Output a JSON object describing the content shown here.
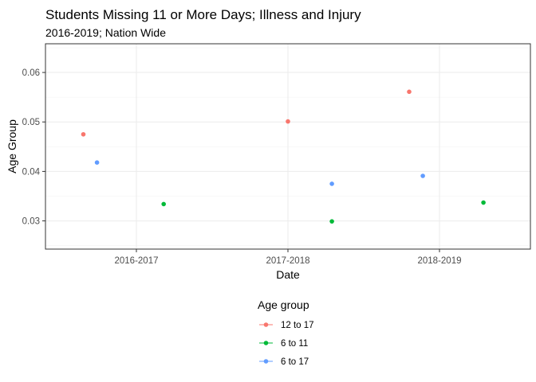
{
  "chart_data": {
    "type": "scatter",
    "title": "Students Missing 11 or More Days; Illness and Injury",
    "subtitle": "2016-2019; Nation Wide",
    "xlabel": "Date",
    "ylabel": "Age Group",
    "x_categories": [
      "2016-2017",
      "2017-2018",
      "2018-2019"
    ],
    "y_ticks": [
      "0.03",
      "0.04",
      "0.05",
      "0.06"
    ],
    "ylim": [
      0.0243,
      0.0658
    ],
    "grid": true,
    "legend": {
      "title": "Age group",
      "placement": "bottom",
      "entries": [
        "12 to 17",
        "6 to 11",
        "6 to 17"
      ]
    },
    "series": [
      {
        "name": "12 to 17",
        "color": "#F8766D",
        "points": [
          {
            "x": "2016-2017",
            "offset": -0.35,
            "y": 0.0475
          },
          {
            "x": "2017-2018",
            "offset": 0.0,
            "y": 0.0501
          },
          {
            "x": "2018-2019",
            "offset": -0.2,
            "y": 0.0561
          }
        ]
      },
      {
        "name": "6 to 11",
        "color": "#00BA38",
        "points": [
          {
            "x": "2016-2017",
            "offset": 0.18,
            "y": 0.0334
          },
          {
            "x": "2017-2018",
            "offset": 0.29,
            "y": 0.0299
          },
          {
            "x": "2018-2019",
            "offset": 0.29,
            "y": 0.0337
          }
        ]
      },
      {
        "name": "6 to 17",
        "color": "#619CFF",
        "points": [
          {
            "x": "2016-2017",
            "offset": -0.26,
            "y": 0.0418
          },
          {
            "x": "2017-2018",
            "offset": 0.29,
            "y": 0.0375
          },
          {
            "x": "2018-2019",
            "offset": -0.11,
            "y": 0.0391
          }
        ]
      }
    ]
  }
}
